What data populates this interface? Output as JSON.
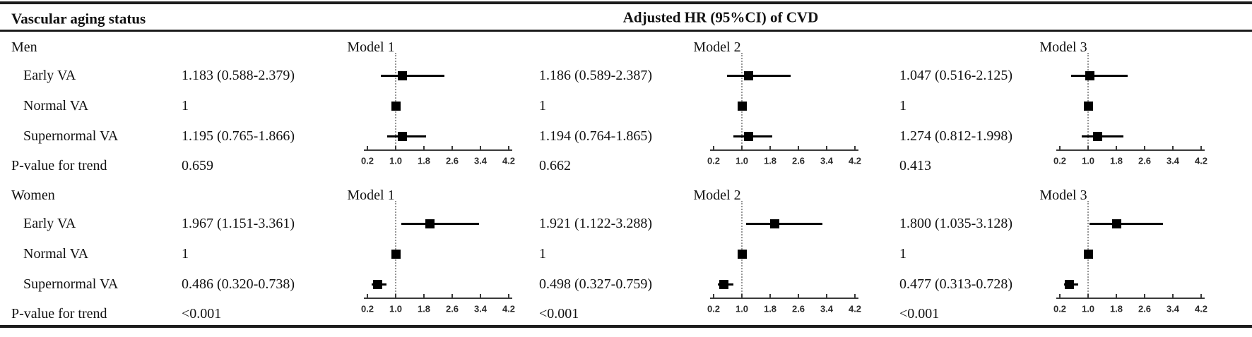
{
  "header": {
    "left": "Vascular aging status",
    "right": "Adjusted HR (95%CI) of CVD"
  },
  "chart_data": {
    "type": "forest",
    "title": "Adjusted HR (95%CI) of CVD",
    "models": [
      "Model 1",
      "Model 2",
      "Model 3"
    ],
    "axis": {
      "tick_labels": [
        "0.2",
        "1.0",
        "1.8",
        "2.6",
        "3.4",
        "4.2"
      ],
      "tick_values": [
        0.2,
        1.0,
        1.8,
        2.6,
        3.4,
        4.2
      ],
      "xlim": [
        0.2,
        4.2
      ],
      "ref_line": 1.0
    },
    "groups": [
      {
        "label": "Men",
        "rows": [
          {
            "label": "Early VA",
            "cells": [
              {
                "text": "1.183 (0.588-2.379)",
                "hr": 1.183,
                "lo": 0.588,
                "hi": 2.379
              },
              {
                "text": "1.186 (0.589-2.387)",
                "hr": 1.186,
                "lo": 0.589,
                "hi": 2.387
              },
              {
                "text": "1.047 (0.516-2.125)",
                "hr": 1.047,
                "lo": 0.516,
                "hi": 2.125
              }
            ]
          },
          {
            "label": "Normal VA",
            "cells": [
              {
                "text": "1",
                "hr": 1.0
              },
              {
                "text": "1",
                "hr": 1.0
              },
              {
                "text": "1",
                "hr": 1.0
              }
            ]
          },
          {
            "label": "Supernormal VA",
            "cells": [
              {
                "text": "1.195 (0.765-1.866)",
                "hr": 1.195,
                "lo": 0.765,
                "hi": 1.866
              },
              {
                "text": "1.194 (0.764-1.865)",
                "hr": 1.194,
                "lo": 0.764,
                "hi": 1.865
              },
              {
                "text": "1.274 (0.812-1.998)",
                "hr": 1.274,
                "lo": 0.812,
                "hi": 1.998
              }
            ]
          }
        ],
        "p_trend": {
          "label": "P-value for trend",
          "values": [
            "0.659",
            "0.662",
            "0.413"
          ]
        }
      },
      {
        "label": "Women",
        "rows": [
          {
            "label": "Early VA",
            "cells": [
              {
                "text": "1.967 (1.151-3.361)",
                "hr": 1.967,
                "lo": 1.151,
                "hi": 3.361
              },
              {
                "text": "1.921 (1.122-3.288)",
                "hr": 1.921,
                "lo": 1.122,
                "hi": 3.288
              },
              {
                "text": "1.800 (1.035-3.128)",
                "hr": 1.8,
                "lo": 1.035,
                "hi": 3.128
              }
            ]
          },
          {
            "label": "Normal VA",
            "cells": [
              {
                "text": "1",
                "hr": 1.0
              },
              {
                "text": "1",
                "hr": 1.0
              },
              {
                "text": "1",
                "hr": 1.0
              }
            ]
          },
          {
            "label": "Supernormal VA",
            "cells": [
              {
                "text": "0.486 (0.320-0.738)",
                "hr": 0.486,
                "lo": 0.32,
                "hi": 0.738
              },
              {
                "text": "0.498 (0.327-0.759)",
                "hr": 0.498,
                "lo": 0.327,
                "hi": 0.759
              },
              {
                "text": "0.477 (0.313-0.728)",
                "hr": 0.477,
                "lo": 0.313,
                "hi": 0.728
              }
            ]
          }
        ],
        "p_trend": {
          "label": "P-value for trend",
          "values": [
            "<0.001",
            "<0.001",
            "<0.001"
          ]
        }
      }
    ],
    "colors": {
      "ink": "#000000",
      "axis": "#3a3a3a",
      "ref_dotted": "#979797"
    }
  }
}
